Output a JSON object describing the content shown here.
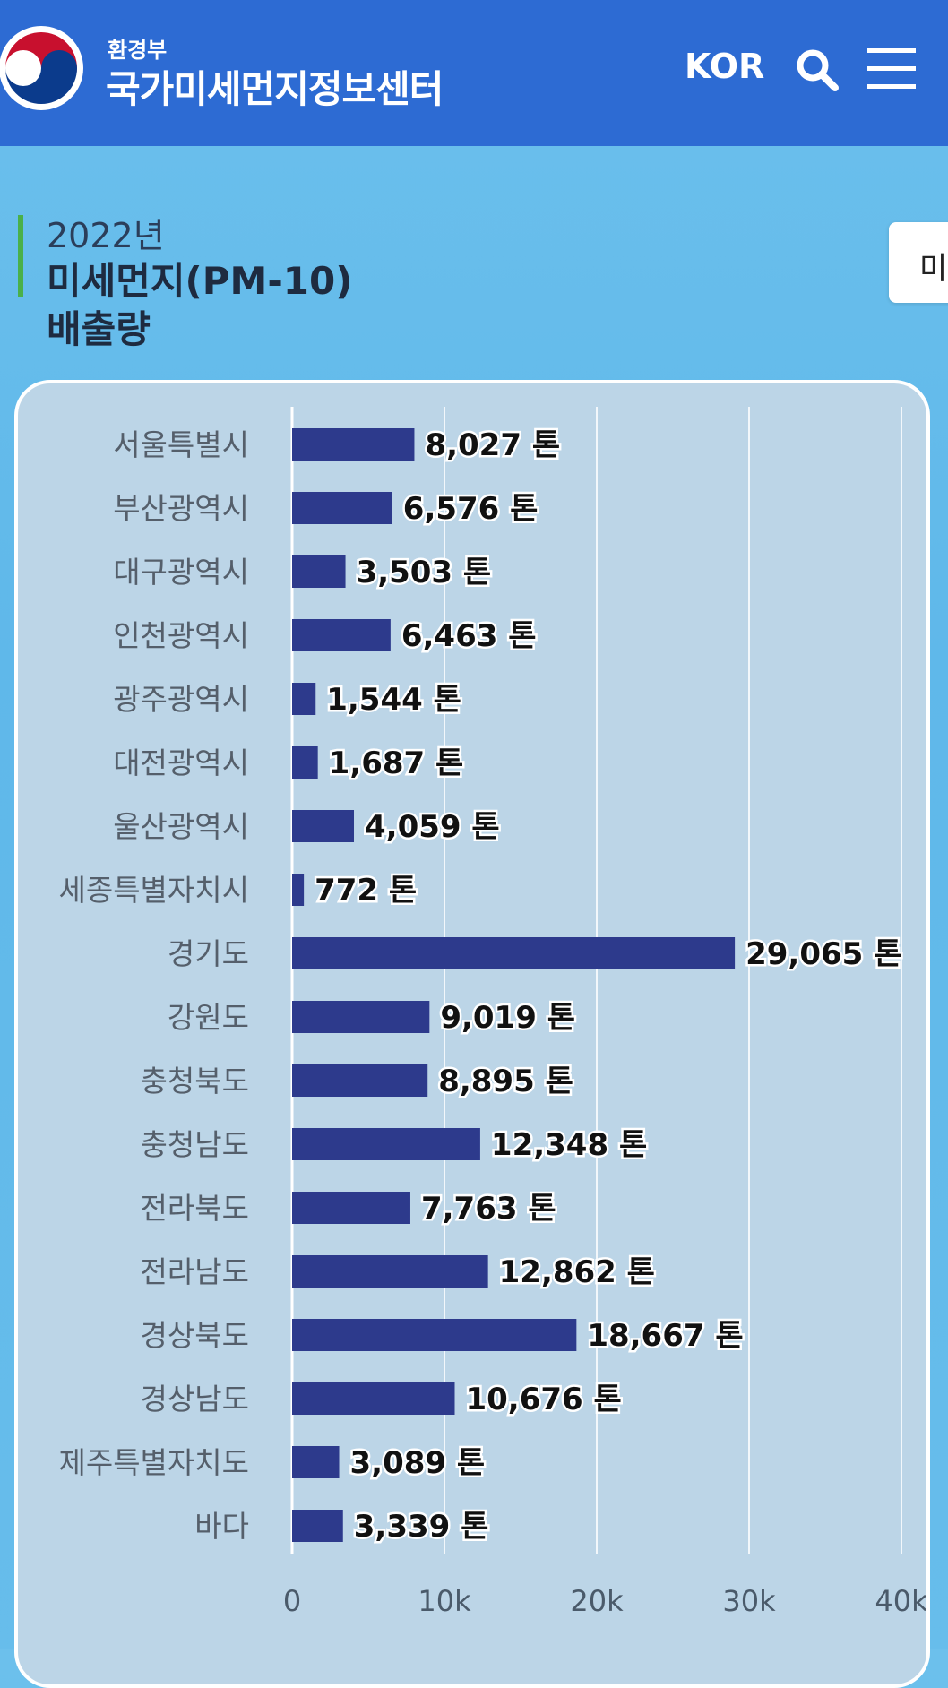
{
  "header": {
    "ministry": "환경부",
    "center_name": "국가미세먼지정보센터",
    "lang": "KOR",
    "icons": {
      "logo": "taegeuk-logo-icon",
      "search": "search-icon",
      "menu": "hamburger-menu-icon"
    },
    "bg_color": "#2d6bd3"
  },
  "title": {
    "year": "2022년",
    "main": "미세먼지(PM-10)",
    "sub": "배출량",
    "accent_color": "#4ab04a"
  },
  "side_tab": {
    "label": "미"
  },
  "chart_data": {
    "type": "bar",
    "orientation": "horizontal",
    "categories": [
      "서울특별시",
      "부산광역시",
      "대구광역시",
      "인천광역시",
      "광주광역시",
      "대전광역시",
      "울산광역시",
      "세종특별자치시",
      "경기도",
      "강원도",
      "충청북도",
      "충청남도",
      "전라북도",
      "전라남도",
      "경상북도",
      "경상남도",
      "제주특별자치도",
      "바다"
    ],
    "values": [
      8027,
      6576,
      3503,
      6463,
      1544,
      1687,
      4059,
      772,
      29065,
      9019,
      8895,
      12348,
      7763,
      12862,
      18667,
      10676,
      3089,
      3339
    ],
    "value_labels": [
      "8,027 톤",
      "6,576 톤",
      "3,503 톤",
      "6,463 톤",
      "1,544 톤",
      "1,687 톤",
      "4,059 톤",
      "772 톤",
      "29,065 톤",
      "9,019 톤",
      "8,895 톤",
      "12,348 톤",
      "7,763 톤",
      "12,862 톤",
      "18,667 톤",
      "10,676 톤",
      "3,089 톤",
      "3,339 톤"
    ],
    "x_ticks": [
      0,
      10000,
      20000,
      30000,
      40000
    ],
    "x_tick_labels": [
      "0",
      "10k",
      "20k",
      "30k",
      "40k"
    ],
    "xlim": [
      0,
      40000
    ],
    "grid": true,
    "bar_color": "#2d3a8c"
  }
}
